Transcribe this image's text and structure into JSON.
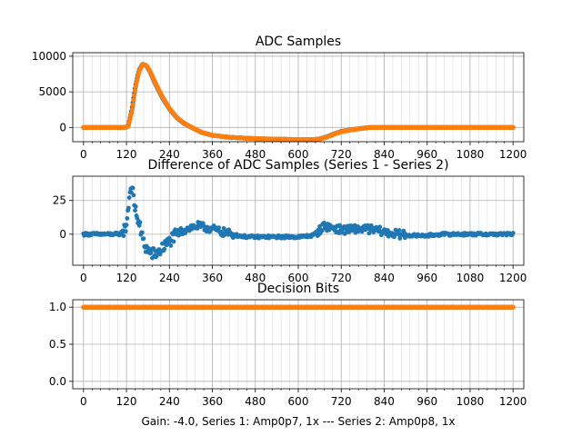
{
  "figure": {
    "xlabel": "Gain: -4.0, Series 1: Amp0p7, 1x --- Series 2: Amp0p8, 1x"
  },
  "chart_data": [
    {
      "type": "scatter",
      "title": "ADC Samples",
      "xlim": [
        -30,
        1230
      ],
      "ylim": [
        -2000,
        10500
      ],
      "xticks": [
        0,
        120,
        240,
        360,
        480,
        600,
        720,
        840,
        960,
        1080,
        1200
      ],
      "yticks": [
        0,
        5000,
        10000
      ],
      "xtick_labels": [
        "0",
        "120",
        "240",
        "360",
        "480",
        "600",
        "720",
        "840",
        "960",
        "1080",
        "1200"
      ],
      "ytick_labels": [
        "0",
        "5000",
        "10000"
      ],
      "grid": true,
      "series": [
        {
          "name": "Series 1",
          "color": "#1f77b4",
          "x": [
            0,
            100,
            115,
            125,
            135,
            145,
            155,
            165,
            175,
            185,
            200,
            220,
            240,
            260,
            280,
            300,
            330,
            360,
            400,
            450,
            500,
            550,
            600,
            640,
            660,
            680,
            700,
            720,
            750,
            780,
            800,
            820,
            900,
            1000,
            1100,
            1200
          ],
          "y": [
            0,
            0,
            0,
            200,
            2500,
            5800,
            8000,
            8900,
            8700,
            7900,
            6200,
            4200,
            2600,
            1400,
            600,
            50,
            -700,
            -1100,
            -1350,
            -1500,
            -1600,
            -1650,
            -1700,
            -1700,
            -1600,
            -1300,
            -900,
            -550,
            -300,
            -100,
            0,
            0,
            0,
            0,
            0,
            0
          ]
        },
        {
          "name": "Series 2",
          "color": "#ff7f0e",
          "x": [
            0,
            100,
            115,
            125,
            135,
            145,
            155,
            165,
            175,
            185,
            200,
            220,
            240,
            260,
            280,
            300,
            330,
            360,
            400,
            450,
            500,
            550,
            600,
            640,
            660,
            680,
            700,
            720,
            750,
            780,
            800,
            820,
            900,
            1000,
            1100,
            1200
          ],
          "y": [
            0,
            0,
            0,
            150,
            2200,
            5500,
            7800,
            8850,
            8750,
            8000,
            6350,
            4350,
            2700,
            1450,
            650,
            80,
            -680,
            -1090,
            -1340,
            -1500,
            -1600,
            -1650,
            -1700,
            -1700,
            -1620,
            -1340,
            -950,
            -600,
            -330,
            -120,
            0,
            0,
            0,
            0,
            0,
            0
          ]
        }
      ]
    },
    {
      "type": "scatter",
      "title": "Difference of ADC Samples (Series 1 - Series 2)",
      "xlim": [
        -30,
        1230
      ],
      "ylim": [
        -23,
        43
      ],
      "xticks": [
        0,
        120,
        240,
        360,
        480,
        600,
        720,
        840,
        960,
        1080,
        1200
      ],
      "yticks": [
        0,
        25
      ],
      "xtick_labels": [
        "0",
        "120",
        "240",
        "360",
        "480",
        "600",
        "720",
        "840",
        "960",
        "1080",
        "1200"
      ],
      "ytick_labels": [
        "0",
        "25"
      ],
      "grid": true,
      "series": [
        {
          "name": "Difference",
          "color": "#1f77b4",
          "x": [
            0,
            100,
            110,
            118,
            122,
            126,
            130,
            134,
            138,
            142,
            148,
            155,
            162,
            170,
            180,
            190,
            200,
            215,
            230,
            245,
            260,
            280,
            300,
            320,
            340,
            360,
            380,
            400,
            430,
            460,
            500,
            550,
            600,
            640,
            660,
            670,
            690,
            710,
            730,
            760,
            790,
            820,
            850,
            880,
            920,
            960,
            1000,
            1100,
            1200
          ],
          "y": [
            0,
            0,
            2,
            5,
            12,
            22,
            32,
            35,
            30,
            22,
            15,
            8,
            0,
            -8,
            -12,
            -14,
            -15,
            -12,
            -8,
            -4,
            0,
            3,
            5,
            6,
            5,
            4,
            2,
            1,
            -1,
            -2,
            -2,
            -2,
            -2,
            -1,
            3,
            6,
            5,
            4,
            3,
            4,
            4,
            3,
            1,
            0,
            -1,
            -1,
            0,
            0,
            0
          ]
        }
      ]
    },
    {
      "type": "scatter",
      "title": "Decision Bits",
      "xlim": [
        -30,
        1230
      ],
      "ylim": [
        -0.1,
        1.1
      ],
      "xticks": [
        0,
        120,
        240,
        360,
        480,
        600,
        720,
        840,
        960,
        1080,
        1200
      ],
      "yticks": [
        0.0,
        0.5,
        1.0
      ],
      "xtick_labels": [
        "0",
        "120",
        "240",
        "360",
        "480",
        "600",
        "720",
        "840",
        "960",
        "1080",
        "1200"
      ],
      "ytick_labels": [
        "0.0",
        "0.5",
        "1.0"
      ],
      "grid": true,
      "series": [
        {
          "name": "Series 1",
          "color": "#1f77b4",
          "x": [
            0,
            1200
          ],
          "y": [
            1,
            1
          ]
        },
        {
          "name": "Series 2",
          "color": "#ff7f0e",
          "x": [
            0,
            1200
          ],
          "y": [
            1,
            1
          ]
        }
      ]
    }
  ]
}
